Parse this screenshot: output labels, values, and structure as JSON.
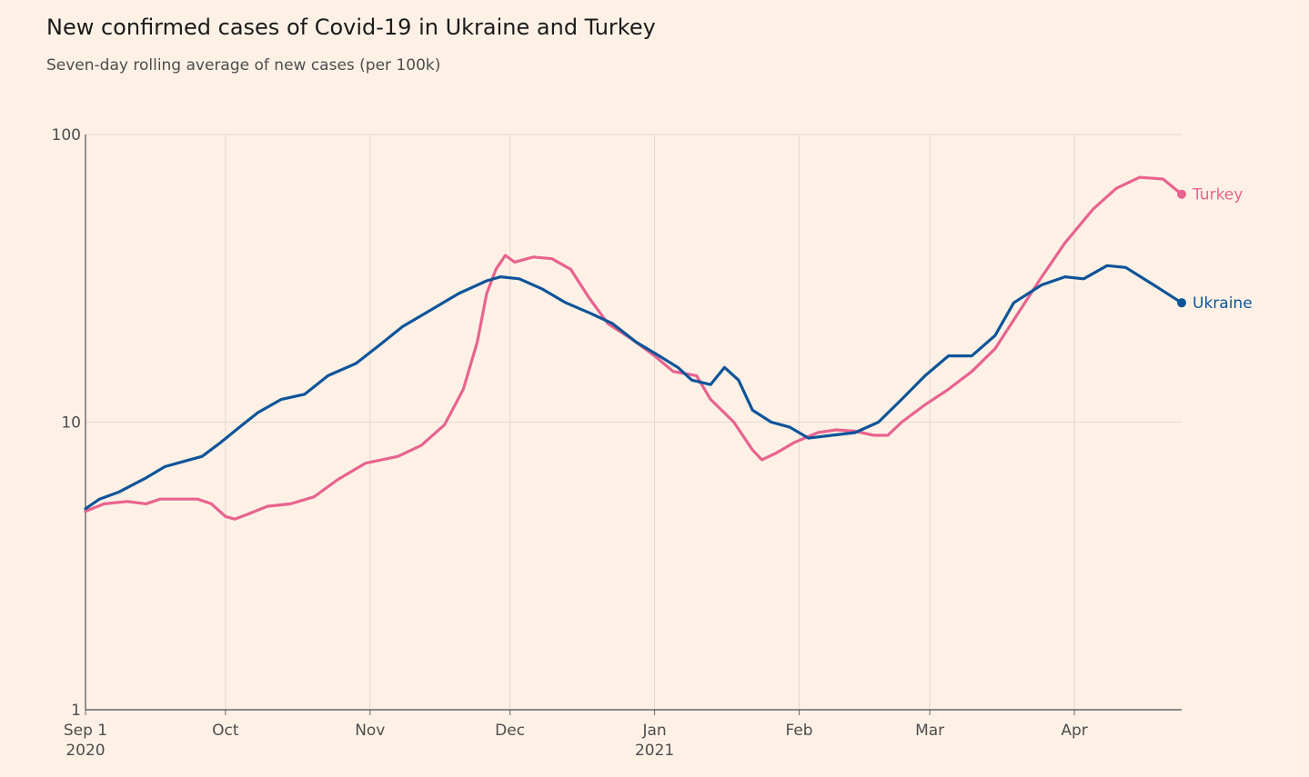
{
  "chart_data": {
    "type": "line",
    "title": "New confirmed cases of Covid-19 in Ukraine and Turkey",
    "subtitle": "Seven-day rolling average of new cases (per 100k)",
    "y_scale": "log",
    "ylim": [
      1,
      100
    ],
    "y_ticks": [
      "1",
      "10",
      "100"
    ],
    "xlim": [
      "2020-09-01",
      "2021-04-24"
    ],
    "x_ticks": [
      {
        "date": "2020-09-01",
        "label": "Sep 1",
        "sublabel": "2020"
      },
      {
        "date": "2020-10-01",
        "label": "Oct",
        "sublabel": ""
      },
      {
        "date": "2020-11-01",
        "label": "Nov",
        "sublabel": ""
      },
      {
        "date": "2020-12-01",
        "label": "Dec",
        "sublabel": ""
      },
      {
        "date": "2021-01-01",
        "label": "Jan",
        "sublabel": "2021"
      },
      {
        "date": "2021-02-01",
        "label": "Feb",
        "sublabel": ""
      },
      {
        "date": "2021-03-01",
        "label": "Mar",
        "sublabel": ""
      },
      {
        "date": "2021-04-01",
        "label": "Apr",
        "sublabel": ""
      }
    ],
    "grid": true,
    "legend": "direct labels at line ends",
    "series": [
      {
        "name": "Turkey",
        "color": "#e8638f",
        "points": [
          [
            "2020-09-01",
            4.9
          ],
          [
            "2020-09-05",
            5.2
          ],
          [
            "2020-09-10",
            5.3
          ],
          [
            "2020-09-14",
            5.2
          ],
          [
            "2020-09-17",
            5.4
          ],
          [
            "2020-09-25",
            5.4
          ],
          [
            "2020-09-28",
            5.2
          ],
          [
            "2020-10-01",
            4.7
          ],
          [
            "2020-10-03",
            4.6
          ],
          [
            "2020-10-06",
            4.8
          ],
          [
            "2020-10-10",
            5.1
          ],
          [
            "2020-10-15",
            5.2
          ],
          [
            "2020-10-20",
            5.5
          ],
          [
            "2020-10-25",
            6.3
          ],
          [
            "2020-10-31",
            7.2
          ],
          [
            "2020-11-07",
            7.6
          ],
          [
            "2020-11-12",
            8.3
          ],
          [
            "2020-11-17",
            9.8
          ],
          [
            "2020-11-21",
            13.0
          ],
          [
            "2020-11-24",
            19.0
          ],
          [
            "2020-11-26",
            28.0
          ],
          [
            "2020-11-28",
            34.0
          ],
          [
            "2020-11-30",
            38.0
          ],
          [
            "2020-12-02",
            36.0
          ],
          [
            "2020-12-06",
            37.5
          ],
          [
            "2020-12-10",
            37.0
          ],
          [
            "2020-12-14",
            34.0
          ],
          [
            "2020-12-18",
            27.0
          ],
          [
            "2020-12-22",
            22.0
          ],
          [
            "2020-12-27",
            19.5
          ],
          [
            "2021-01-01",
            17.0
          ],
          [
            "2021-01-05",
            15.0
          ],
          [
            "2021-01-10",
            14.5
          ],
          [
            "2021-01-13",
            12.0
          ],
          [
            "2021-01-18",
            10.0
          ],
          [
            "2021-01-22",
            8.0
          ],
          [
            "2021-01-24",
            7.4
          ],
          [
            "2021-01-27",
            7.8
          ],
          [
            "2021-01-31",
            8.5
          ],
          [
            "2021-02-05",
            9.2
          ],
          [
            "2021-02-09",
            9.4
          ],
          [
            "2021-02-13",
            9.3
          ],
          [
            "2021-02-17",
            9.0
          ],
          [
            "2021-02-20",
            9.0
          ],
          [
            "2021-02-23",
            10.0
          ],
          [
            "2021-02-28",
            11.5
          ],
          [
            "2021-03-05",
            13.0
          ],
          [
            "2021-03-10",
            15.0
          ],
          [
            "2021-03-15",
            18.0
          ],
          [
            "2021-03-20",
            24.0
          ],
          [
            "2021-03-25",
            32.0
          ],
          [
            "2021-03-30",
            42.0
          ],
          [
            "2021-04-05",
            55.0
          ],
          [
            "2021-04-10",
            65.0
          ],
          [
            "2021-04-15",
            71.0
          ],
          [
            "2021-04-20",
            70.0
          ],
          [
            "2021-04-24",
            62.0
          ]
        ]
      },
      {
        "name": "Ukraine",
        "color": "#0f5499",
        "points": [
          [
            "2020-09-01",
            5.0
          ],
          [
            "2020-09-04",
            5.4
          ],
          [
            "2020-09-08",
            5.7
          ],
          [
            "2020-09-14",
            6.4
          ],
          [
            "2020-09-18",
            7.0
          ],
          [
            "2020-09-22",
            7.3
          ],
          [
            "2020-09-26",
            7.6
          ],
          [
            "2020-09-30",
            8.5
          ],
          [
            "2020-10-04",
            9.6
          ],
          [
            "2020-10-08",
            10.8
          ],
          [
            "2020-10-13",
            12.0
          ],
          [
            "2020-10-18",
            12.5
          ],
          [
            "2020-10-23",
            14.5
          ],
          [
            "2020-10-29",
            16.0
          ],
          [
            "2020-11-03",
            18.5
          ],
          [
            "2020-11-08",
            21.5
          ],
          [
            "2020-11-14",
            24.5
          ],
          [
            "2020-11-20",
            28.0
          ],
          [
            "2020-11-26",
            31.0
          ],
          [
            "2020-11-29",
            32.0
          ],
          [
            "2020-12-03",
            31.5
          ],
          [
            "2020-12-08",
            29.0
          ],
          [
            "2020-12-13",
            26.0
          ],
          [
            "2020-12-18",
            24.0
          ],
          [
            "2020-12-23",
            22.0
          ],
          [
            "2020-12-28",
            19.0
          ],
          [
            "2021-01-02",
            17.0
          ],
          [
            "2021-01-06",
            15.5
          ],
          [
            "2021-01-09",
            14.0
          ],
          [
            "2021-01-13",
            13.5
          ],
          [
            "2021-01-16",
            15.5
          ],
          [
            "2021-01-19",
            14.0
          ],
          [
            "2021-01-22",
            11.0
          ],
          [
            "2021-01-26",
            10.0
          ],
          [
            "2021-01-30",
            9.6
          ],
          [
            "2021-02-03",
            8.8
          ],
          [
            "2021-02-08",
            9.0
          ],
          [
            "2021-02-13",
            9.2
          ],
          [
            "2021-02-18",
            10.0
          ],
          [
            "2021-02-23",
            12.0
          ],
          [
            "2021-02-28",
            14.5
          ],
          [
            "2021-03-05",
            17.0
          ],
          [
            "2021-03-10",
            17.0
          ],
          [
            "2021-03-15",
            20.0
          ],
          [
            "2021-03-19",
            26.0
          ],
          [
            "2021-03-25",
            30.0
          ],
          [
            "2021-03-30",
            32.0
          ],
          [
            "2021-04-03",
            31.5
          ],
          [
            "2021-04-08",
            35.0
          ],
          [
            "2021-04-12",
            34.5
          ],
          [
            "2021-04-18",
            30.0
          ],
          [
            "2021-04-24",
            26.0
          ]
        ]
      }
    ]
  }
}
